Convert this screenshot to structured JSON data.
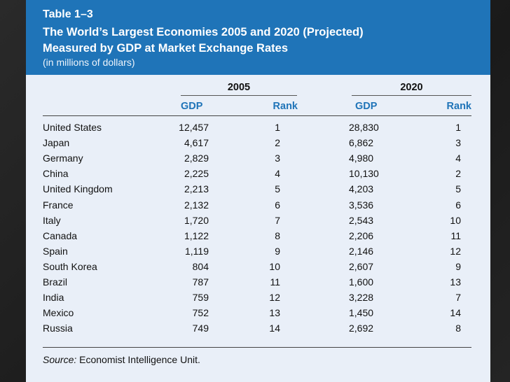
{
  "table": {
    "number": "Table 1–3",
    "title_line1": "The World’s Largest Economies 2005 and 2020 (Projected)",
    "title_line2": "Measured by GDP at Market Exchange Rates",
    "subtitle": "(in millions of dollars)",
    "group_2005": "2005",
    "group_2020": "2020",
    "col_gdp_2005": "GDP",
    "col_rank_2005": "Rank",
    "col_gdp_2020": "GDP",
    "col_rank_2020": "Rank",
    "rows": [
      {
        "country": "United States",
        "gdp2005": "12,457",
        "rank2005": "1",
        "gdp2020": "28,830",
        "rank2020": "1"
      },
      {
        "country": "Japan",
        "gdp2005": "4,617",
        "rank2005": "2",
        "gdp2020": "6,862",
        "rank2020": "3"
      },
      {
        "country": "Germany",
        "gdp2005": "2,829",
        "rank2005": "3",
        "gdp2020": "4,980",
        "rank2020": "4"
      },
      {
        "country": "China",
        "gdp2005": "2,225",
        "rank2005": "4",
        "gdp2020": "10,130",
        "rank2020": "2"
      },
      {
        "country": "United Kingdom",
        "gdp2005": "2,213",
        "rank2005": "5",
        "gdp2020": "4,203",
        "rank2020": "5"
      },
      {
        "country": "France",
        "gdp2005": "2,132",
        "rank2005": "6",
        "gdp2020": "3,536",
        "rank2020": "6"
      },
      {
        "country": "Italy",
        "gdp2005": "1,720",
        "rank2005": "7",
        "gdp2020": "2,543",
        "rank2020": "10"
      },
      {
        "country": "Canada",
        "gdp2005": "1,122",
        "rank2005": "8",
        "gdp2020": "2,206",
        "rank2020": "11"
      },
      {
        "country": "Spain",
        "gdp2005": "1,119",
        "rank2005": "9",
        "gdp2020": "2,146",
        "rank2020": "12"
      },
      {
        "country": "South Korea",
        "gdp2005": "804",
        "rank2005": "10",
        "gdp2020": "2,607",
        "rank2020": "9"
      },
      {
        "country": "Brazil",
        "gdp2005": "787",
        "rank2005": "11",
        "gdp2020": "1,600",
        "rank2020": "13"
      },
      {
        "country": "India",
        "gdp2005": "759",
        "rank2005": "12",
        "gdp2020": "3,228",
        "rank2020": "7"
      },
      {
        "country": "Mexico",
        "gdp2005": "752",
        "rank2005": "13",
        "gdp2020": "1,450",
        "rank2020": "14"
      },
      {
        "country": "Russia",
        "gdp2005": "749",
        "rank2005": "14",
        "gdp2020": "2,692",
        "rank2020": "8"
      }
    ],
    "source_label": "Source:",
    "source_text": "Economist Intelligence Unit."
  },
  "colors": {
    "header_bg": "#1f74b8",
    "panel_bg": "#e9eff8",
    "column_header": "#1f74b8"
  }
}
